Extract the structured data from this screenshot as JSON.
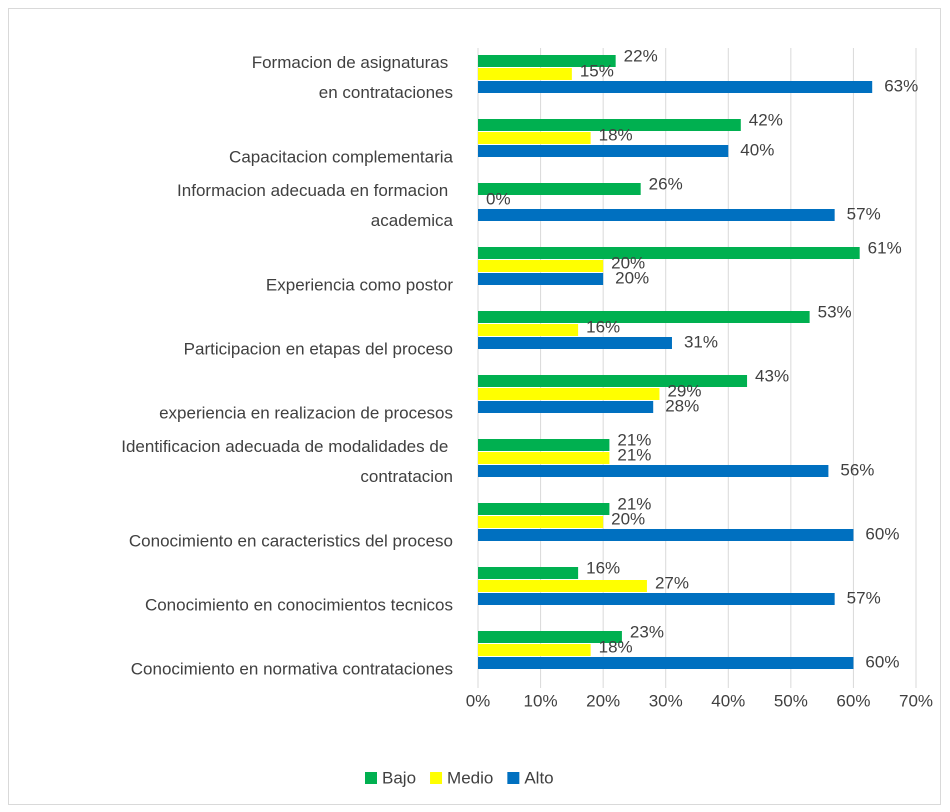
{
  "chart_data": {
    "type": "hbar",
    "categories": [
      "Formacion de asignaturas en contrataciones",
      "Capacitacion complementaria",
      "Informacion adecuada en formacion academica",
      "Experiencia como postor ",
      "Participacion en etapas del proceso",
      "experiencia en realizacion de procesos",
      "Identificacion adecuada de modalidades de contratacion",
      "Conocimiento en caracteristics del proceso",
      "Conocimiento en conocimientos tecnicos",
      "Conocimiento en normativa contrataciones"
    ],
    "series": [
      {
        "name": "Bajo",
        "color": "#00b050",
        "values": [
          22,
          42,
          26,
          61,
          53,
          43,
          21,
          21,
          16,
          23
        ],
        "value_labels": [
          "22%",
          "42%",
          "26%",
          "61%",
          "53%",
          "43%",
          "21%",
          "21%",
          "16%",
          "23%"
        ]
      },
      {
        "name": "Medio",
        "color": "#ffff00",
        "values": [
          15,
          18,
          0,
          20,
          16,
          29,
          21,
          20,
          27,
          18
        ],
        "value_labels": [
          "15%",
          "18%",
          "0%",
          "20%",
          "16%",
          "29%",
          "21%",
          "20%",
          "27%",
          "18%"
        ]
      },
      {
        "name": "Alto",
        "color": "#0070c0",
        "values": [
          63,
          40,
          57,
          20,
          31,
          28,
          56,
          60,
          57,
          60
        ],
        "value_labels": [
          "63%",
          "40%",
          "57%",
          "20%",
          "31%",
          "28%",
          "56%",
          "60%",
          "57%",
          "60%"
        ]
      }
    ],
    "xlim": [
      0,
      70
    ],
    "xticks": [
      {
        "value": 0,
        "label": "0%"
      },
      {
        "value": 10,
        "label": "10%"
      },
      {
        "value": 20,
        "label": "20%"
      },
      {
        "value": 30,
        "label": "30%"
      },
      {
        "value": 40,
        "label": "40%"
      },
      {
        "value": 50,
        "label": "50%"
      },
      {
        "value": 60,
        "label": "60%"
      },
      {
        "value": 70,
        "label": "70%"
      }
    ],
    "grid": true,
    "legend": "bottom"
  }
}
